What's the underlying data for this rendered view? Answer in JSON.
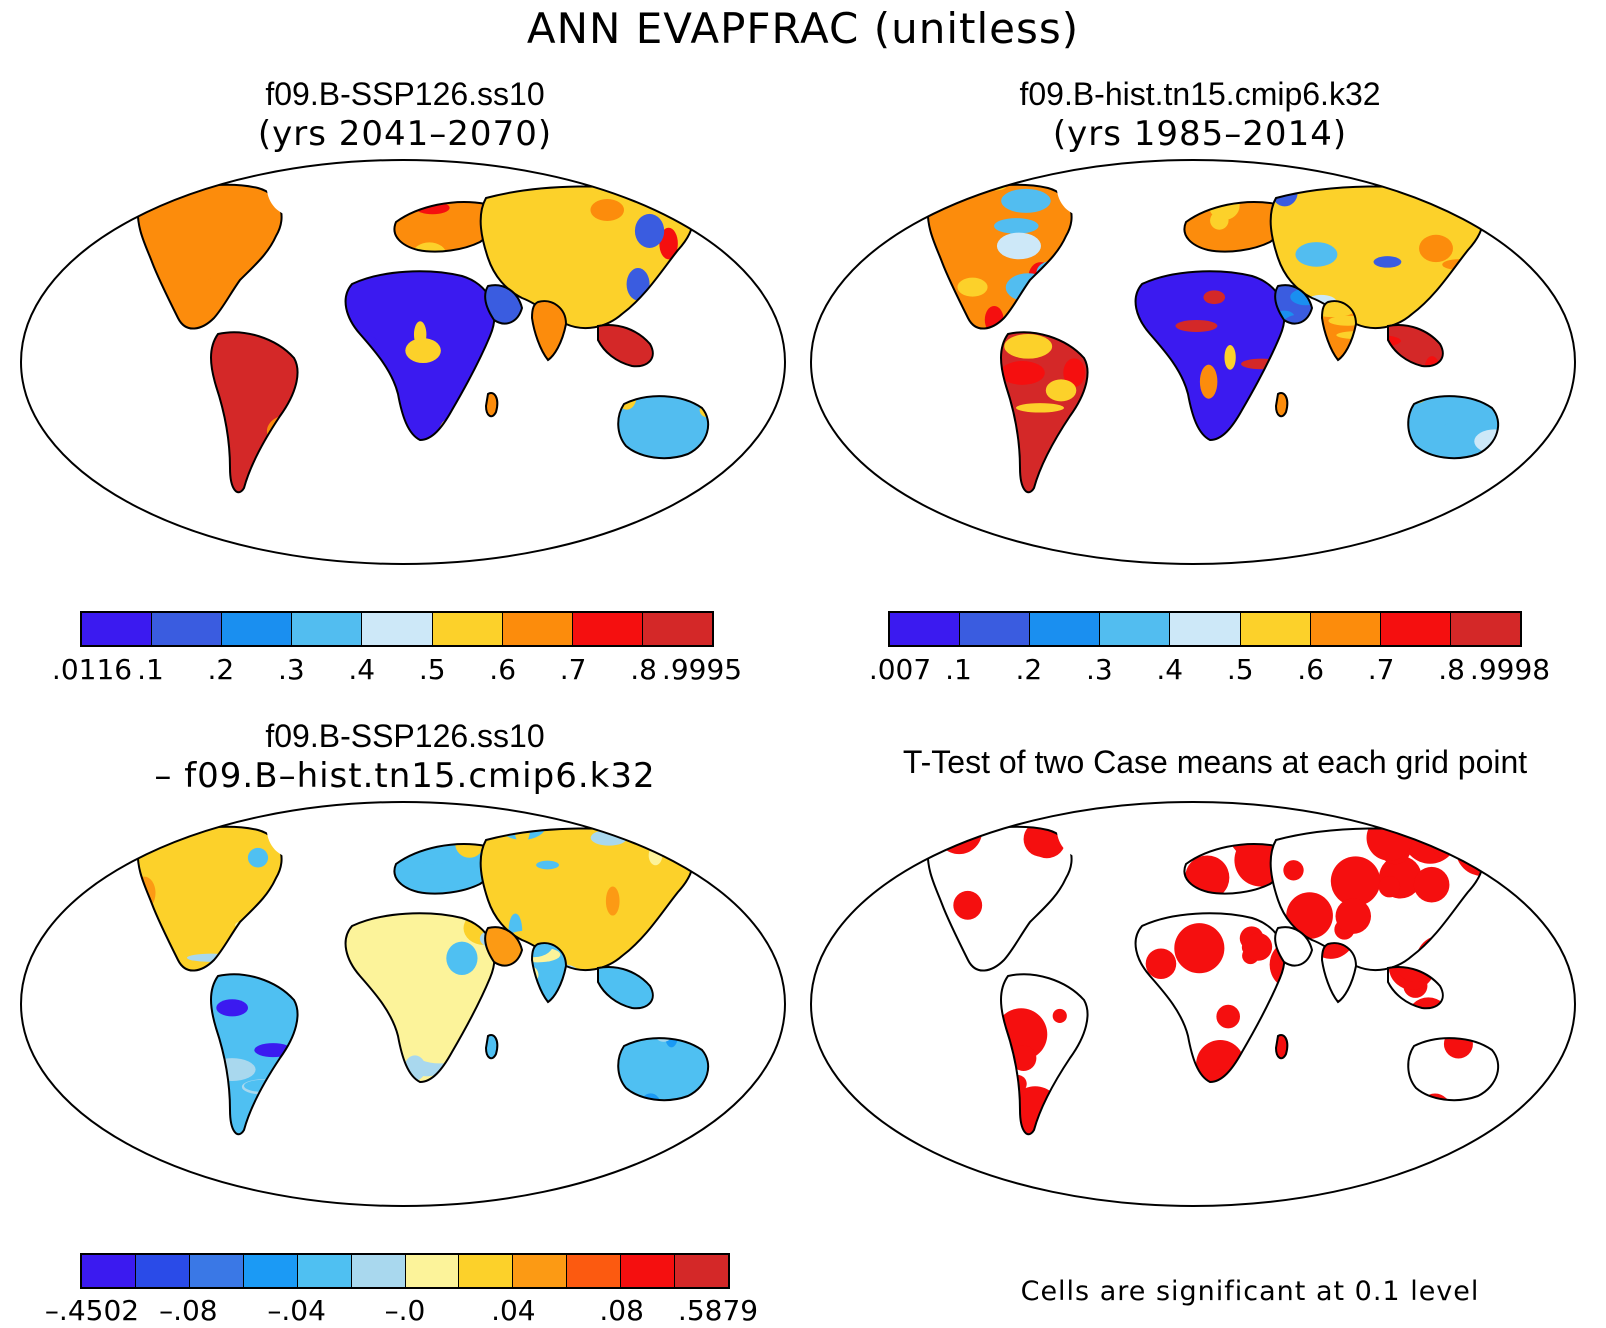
{
  "figure": {
    "title": "ANN EVAPFRAC (unitless)"
  },
  "panels": [
    {
      "id": "p1",
      "title": "f09.B-SSP126.ss10",
      "subtitle": "(yrs 2041–2070)",
      "scheme": "abs"
    },
    {
      "id": "p2",
      "title": "f09.B-hist.tn15.cmip6.k32",
      "subtitle": "(yrs 1985–2014)",
      "scheme": "abs"
    },
    {
      "id": "p3",
      "title": "f09.B-SSP126.ss10",
      "subtitle": "– f09.B–hist.tn15.cmip6.k32",
      "scheme": "diff"
    },
    {
      "id": "p4",
      "title": "T-Test of two Case means at each grid point",
      "subtitle": "",
      "scheme": "sig",
      "note": "Cells are significant at 0.1 level"
    }
  ],
  "colorbars": {
    "p1": {
      "colors": [
        "#3b1af0",
        "#3a5ce0",
        "#1a8ff0",
        "#52bdf0",
        "#cde8f8",
        "#fcd12a",
        "#fc8c0c",
        "#f50f0f",
        "#d42828"
      ],
      "labels": [
        ".0116",
        ".1",
        ".2",
        ".3",
        ".4",
        ".5",
        ".6",
        ".7",
        ".8",
        ".9995"
      ]
    },
    "p2": {
      "colors": [
        "#3b1af0",
        "#3a5ce0",
        "#1a8ff0",
        "#52bdf0",
        "#cde8f8",
        "#fcd12a",
        "#fc8c0c",
        "#f50f0f",
        "#d42828"
      ],
      "labels": [
        ".007",
        ".1",
        ".2",
        ".3",
        ".4",
        ".5",
        ".6",
        ".7",
        ".8",
        ".9998"
      ]
    },
    "p3": {
      "colors": [
        "#3b1af0",
        "#2a4be8",
        "#3a78e6",
        "#1b9af5",
        "#4fc0f2",
        "#a9d8ee",
        "#fcf39a",
        "#fcd12a",
        "#fc9a14",
        "#fc5a10",
        "#f50f0f",
        "#d42828"
      ],
      "labels": [
        "–.4502",
        "–.08",
        "–.04",
        "–.0",
        ".04",
        ".08",
        ".5879"
      ]
    }
  },
  "map_colors": {
    "land_border": "#000000",
    "significant": "#f50f0f"
  }
}
